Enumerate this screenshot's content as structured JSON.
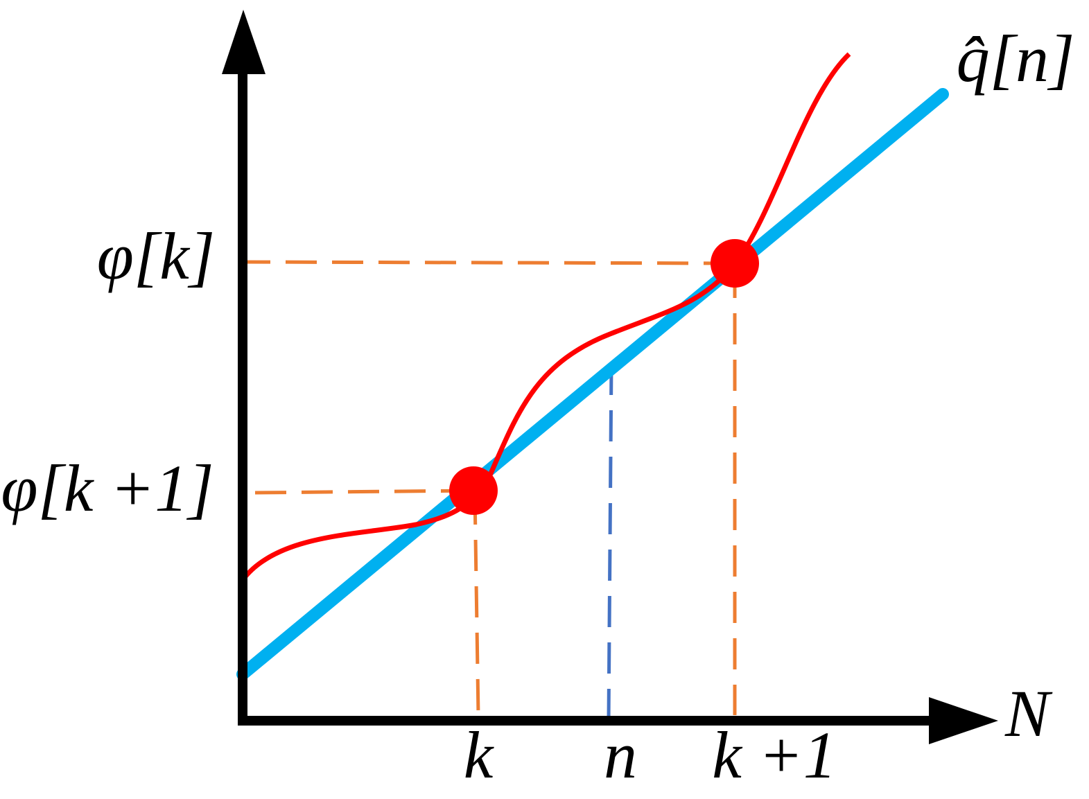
{
  "curve_label": "q̂[n]",
  "x_axis_label": "N",
  "y_labels": [
    "φ[k]",
    "φ[k +1]"
  ],
  "x_labels": [
    "k",
    "n",
    "k +1"
  ]
}
